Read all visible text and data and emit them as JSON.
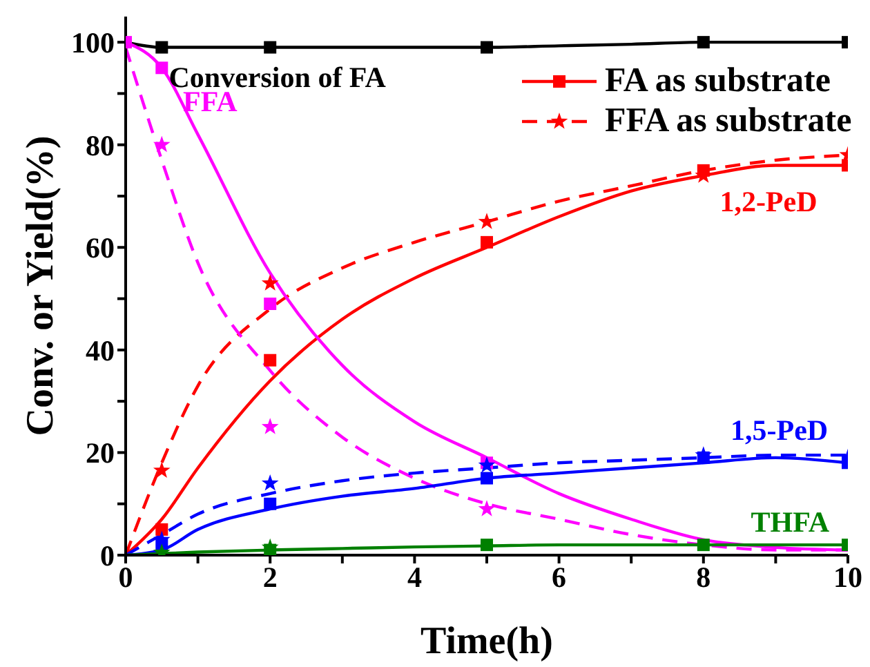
{
  "chart_data": {
    "type": "line",
    "xlabel": "Time(h)",
    "ylabel": "Conv. or Yield(%)",
    "xlim": [
      0,
      10
    ],
    "xticks": [
      0,
      {
        "value": 1,
        "label": null
      },
      2,
      {
        "value": 3,
        "label": null
      },
      4,
      {
        "value": 5,
        "label": null
      },
      6,
      {
        "value": 7,
        "label": null
      },
      8,
      {
        "value": 9,
        "label": null
      },
      10
    ],
    "ylim": [
      0,
      105
    ],
    "yticks": [
      0,
      {
        "value": 10,
        "label": null
      },
      20,
      {
        "value": 30,
        "label": null
      },
      40,
      {
        "value": 50,
        "label": null
      },
      60,
      {
        "value": 70,
        "label": null
      },
      80,
      {
        "value": 90,
        "label": null
      },
      100
    ],
    "grid": false,
    "legend": "top right",
    "series": [
      {
        "type": "line",
        "color": "#000000",
        "line_style": "solid",
        "x": [
          0,
          0.5,
          1,
          2,
          3,
          4,
          5,
          6,
          7,
          8,
          9,
          10
        ],
        "values": [
          100,
          99,
          99,
          99,
          99,
          99,
          99,
          99.3,
          99.6,
          100,
          100,
          100
        ]
      },
      {
        "type": "scatter",
        "color": "#000000",
        "marker": "square",
        "x": [
          0.5,
          2,
          5,
          8,
          10
        ],
        "values": [
          99,
          99,
          99,
          100,
          100
        ]
      },
      {
        "type": "line",
        "name": "FA as substrate",
        "color": "#ff0000",
        "line_style": "solid",
        "x": [
          0,
          0.5,
          1,
          2,
          3,
          4,
          5,
          6,
          7,
          8,
          9,
          10
        ],
        "values": [
          0,
          7,
          17,
          34,
          46,
          54,
          60,
          66,
          71,
          74,
          76,
          76
        ]
      },
      {
        "type": "scatter",
        "color": "#ff0000",
        "marker": "square",
        "x": [
          0.5,
          2,
          5,
          8,
          10
        ],
        "values": [
          5,
          38,
          61,
          75,
          76
        ]
      },
      {
        "type": "line",
        "name": "FFA as substrate",
        "color": "#ff0000",
        "line_style": "dashed",
        "x": [
          0,
          0.5,
          1,
          2,
          3,
          4,
          5,
          6,
          7,
          8,
          9,
          10
        ],
        "values": [
          0,
          18,
          33,
          48,
          56,
          61,
          65,
          69,
          72,
          75,
          77,
          78
        ]
      },
      {
        "type": "scatter",
        "color": "#ff0000",
        "marker": "star",
        "x": [
          0.5,
          2,
          5,
          8,
          10
        ],
        "values": [
          16.5,
          53,
          65,
          74,
          78
        ]
      },
      {
        "type": "line",
        "color": "#ff00ff",
        "line_style": "solid",
        "x": [
          0,
          0.5,
          1,
          2,
          3,
          4,
          5,
          6,
          7,
          8,
          9,
          10
        ],
        "values": [
          100,
          95,
          82,
          55,
          37,
          26,
          19,
          12,
          7,
          3,
          1.5,
          1
        ]
      },
      {
        "type": "scatter",
        "color": "#ff00ff",
        "marker": "square",
        "x": [
          0,
          0.5,
          2,
          5
        ],
        "values": [
          100,
          95,
          49,
          18
        ]
      },
      {
        "type": "line",
        "color": "#ff00ff",
        "line_style": "dashed",
        "x": [
          0,
          0.5,
          1,
          2,
          3,
          4,
          5,
          6,
          7,
          8,
          9,
          10
        ],
        "values": [
          99,
          77,
          57,
          36,
          23,
          15,
          10,
          7,
          4,
          2,
          1,
          1
        ]
      },
      {
        "type": "scatter",
        "color": "#ff00ff",
        "marker": "star",
        "x": [
          0.5,
          2,
          5
        ],
        "values": [
          80,
          25,
          9
        ]
      },
      {
        "type": "line",
        "color": "#0000ff",
        "line_style": "solid",
        "x": [
          0,
          0.5,
          1,
          2,
          3,
          4,
          5,
          6,
          7,
          8,
          9,
          10
        ],
        "values": [
          0,
          1,
          5,
          9,
          11.5,
          13,
          15,
          16,
          17,
          18,
          19,
          18
        ]
      },
      {
        "type": "scatter",
        "color": "#0000ff",
        "marker": "square",
        "x": [
          0.5,
          2,
          5,
          8,
          10
        ],
        "values": [
          2,
          10,
          15,
          19,
          18
        ]
      },
      {
        "type": "line",
        "color": "#0000ff",
        "line_style": "dashed",
        "x": [
          0,
          0.5,
          1,
          2,
          3,
          4,
          5,
          6,
          7,
          8,
          9,
          10
        ],
        "values": [
          0,
          4,
          8,
          12,
          14.5,
          16,
          17,
          18,
          18.5,
          19,
          19.5,
          19.5
        ]
      },
      {
        "type": "scatter",
        "color": "#0000ff",
        "marker": "star",
        "x": [
          0.5,
          2,
          5,
          8,
          10
        ],
        "values": [
          3,
          14,
          17.5,
          19.5,
          19
        ]
      },
      {
        "type": "line",
        "color": "#008000",
        "line_style": "solid",
        "x": [
          0,
          0.5,
          1,
          2,
          3,
          4,
          5,
          6,
          7,
          8,
          9,
          10
        ],
        "values": [
          0,
          0.3,
          0.6,
          1,
          1.3,
          1.6,
          1.8,
          2,
          2,
          2,
          2,
          2
        ]
      },
      {
        "type": "scatter",
        "color": "#008000",
        "marker": "square",
        "x": [
          2,
          5,
          8,
          10
        ],
        "values": [
          1,
          2,
          2,
          2
        ]
      },
      {
        "type": "scatter",
        "color": "#008000",
        "marker": "star",
        "x": [
          0.5,
          2
        ],
        "values": [
          0.5,
          1.5
        ]
      }
    ],
    "annotations": [
      "Conversion of FA",
      "FFA",
      "1,2-PeD",
      "1,5-PeD",
      "THFA"
    ]
  }
}
